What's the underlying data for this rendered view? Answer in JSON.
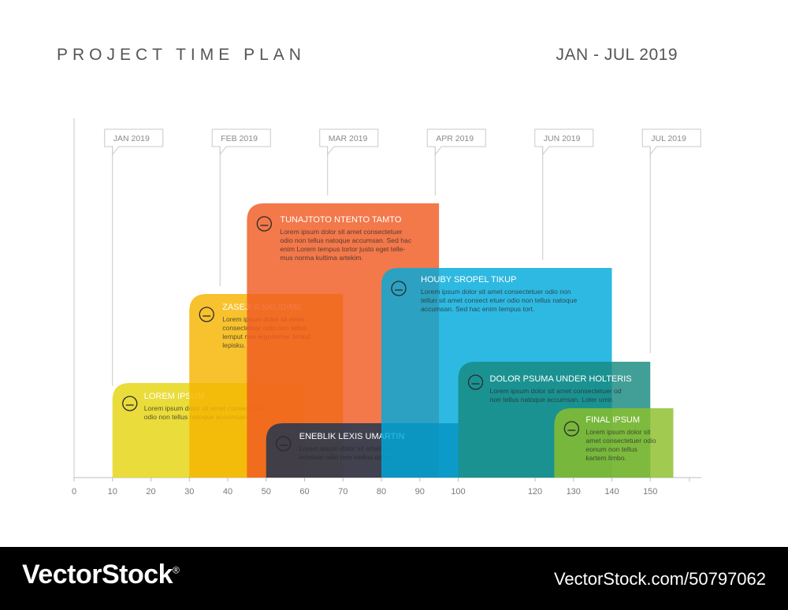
{
  "header": {
    "title": "PROJECT TIME PLAN",
    "date_range": "JAN - JUL 2019"
  },
  "footer": {
    "brand": "VectorStock",
    "registered": "®",
    "url": "VectorStock.com/50797062"
  },
  "chart_data": {
    "type": "bar",
    "xlim": [
      0,
      160
    ],
    "x_ticks": [
      0,
      10,
      20,
      30,
      40,
      50,
      60,
      70,
      80,
      90,
      100,
      120,
      130,
      140,
      150
    ],
    "month_markers": [
      {
        "label": "JAN 2019",
        "x": 10
      },
      {
        "label": "FEB 2019",
        "x": 38
      },
      {
        "label": "MAR 2019",
        "x": 66
      },
      {
        "label": "APR 2019",
        "x": 94
      },
      {
        "label": "JUN 2019",
        "x": 122
      },
      {
        "label": "JUL 2019",
        "x": 150
      }
    ],
    "tasks": [
      {
        "name": "LOREM IPSUM",
        "start": 10,
        "end": 60,
        "color": "#e5d40f",
        "icon": "lightbulb-icon",
        "text": [
          "Lorem ipsum dolor sit amet consectetuer",
          "odio non tellus natoque accumsan."
        ]
      },
      {
        "name": "ZASEJI A SKLIDIME",
        "start": 30,
        "end": 70,
        "color": "#f7b400",
        "icon": "puzzle-icon",
        "text": [
          "Lorem ipsum dolor sit amet",
          "consectetuer odio non tellus",
          "lemput non ergonomer timkul",
          "lepisku."
        ]
      },
      {
        "name": "TUNAJTOTO NTENTO TAMTO",
        "start": 45,
        "end": 95,
        "color": "#f05a22",
        "icon": "speech-bubbles-icon",
        "text": [
          "Lorem ipsum dolor sit amet consectetuer",
          "odio non tellus natoque accumsan. Sed hac",
          "enim Lorem tempus tortor justo eget telle-",
          "mus norma kultima artekim."
        ]
      },
      {
        "name": "ENEBLIK LEXIS UMARTIN",
        "start": 50,
        "end": 100,
        "color": "#1a3550",
        "icon": "person-icon",
        "text": [
          "Lorem ipsum dolor sit amet cons",
          "ectetuer odio non tvellus accum"
        ]
      },
      {
        "name": "HOUBY SROPEL TIKUP",
        "start": 80,
        "end": 140,
        "color": "#00aadc",
        "icon": "globe-icon",
        "text": [
          "Lorem ipsum dolor sit amet consectetuer odio non",
          "tellun sit amet consect etuer odio non tellus natoque",
          "accumsan. Sed hac enim tempus tort."
        ]
      },
      {
        "name": "DOLOR PSUMA UNDER HOLTERIS",
        "start": 100,
        "end": 150,
        "color": "#178a80",
        "icon": "gears-icon",
        "text": [
          "Lorem ipsum dolor sit amet consectetuer od",
          "non tellus natoque accumsan. Loter umir."
        ]
      },
      {
        "name": "FINAL IPSUM",
        "start": 125,
        "end": 156,
        "color": "#8cbf2a",
        "icon": "house-icon",
        "text": [
          "Lorem ipsum dolor sit",
          "amet consectetuer odio",
          "eonum non tellus",
          "kartem limbo."
        ]
      }
    ]
  }
}
